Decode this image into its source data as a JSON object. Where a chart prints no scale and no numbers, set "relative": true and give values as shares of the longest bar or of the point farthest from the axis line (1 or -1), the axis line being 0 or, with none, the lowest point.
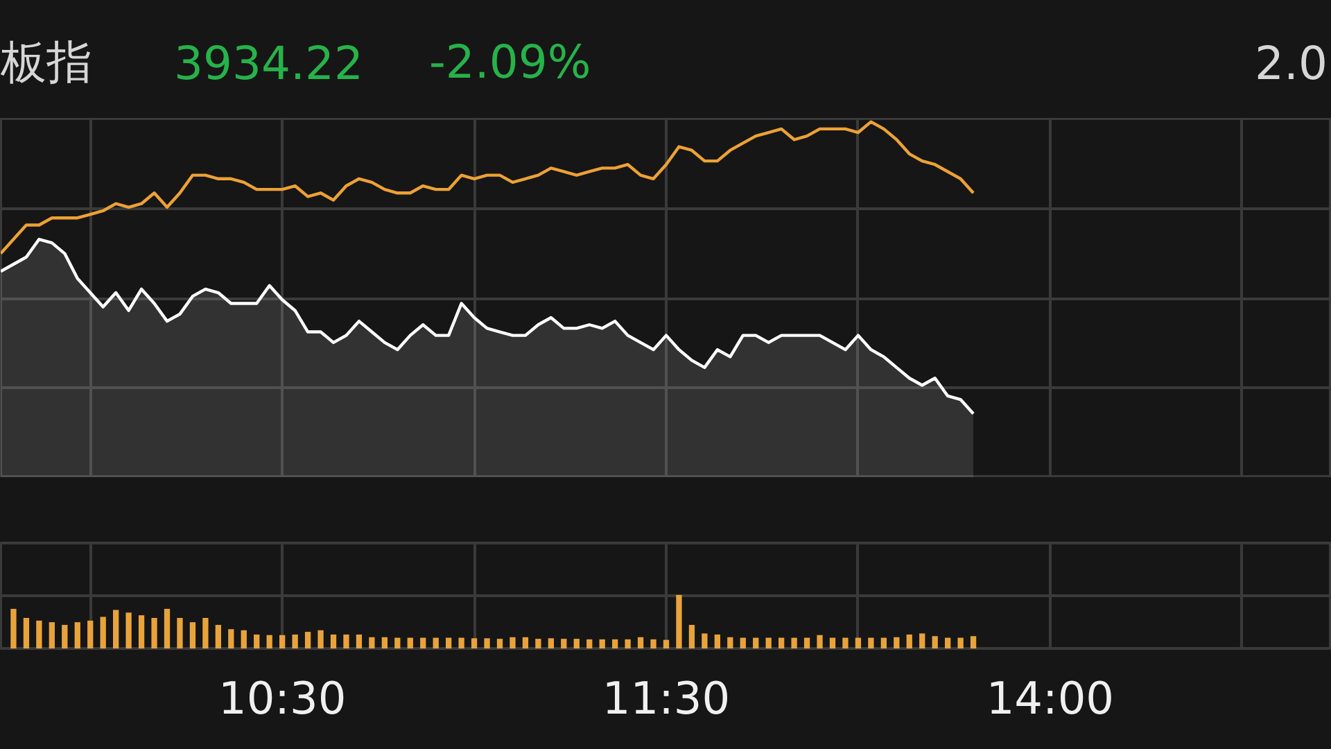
{
  "chart_data": [
    {
      "type": "line",
      "title": "板指",
      "annotations": [
        "3934.22",
        "-2.09%",
        "2.0"
      ],
      "relative": true,
      "grid": true,
      "tick_labels": false,
      "categories": [
        null,
        null,
        null,
        null,
        null,
        null,
        null,
        null,
        null,
        null,
        null,
        null,
        null,
        null,
        null,
        null,
        null,
        null,
        null,
        null,
        null,
        null,
        null,
        null,
        null,
        null,
        null,
        null,
        null,
        null,
        null,
        null,
        null,
        null,
        null,
        null,
        null,
        null,
        null,
        null,
        null,
        null,
        null,
        null,
        null,
        null,
        null,
        null,
        null,
        null,
        null,
        null,
        null,
        null,
        null,
        null,
        null,
        null,
        null,
        null,
        null,
        null,
        null,
        null,
        null,
        null,
        null,
        null,
        null,
        null,
        null,
        null,
        null,
        null,
        null,
        null,
        null,
        null,
        null,
        null,
        null,
        null,
        null,
        null,
        null,
        null,
        null,
        null,
        null,
        null,
        null,
        null,
        null,
        null,
        null,
        null,
        null,
        null,
        null,
        null,
        null,
        null,
        null,
        null,
        null
      ],
      "series": [
        {
          "type": "area",
          "color": "#ffffff",
          "values": [
            0.58,
            0.6,
            0.62,
            0.67,
            0.66,
            0.63,
            0.56,
            0.52,
            0.48,
            0.52,
            0.47,
            0.53,
            0.49,
            0.44,
            0.46,
            0.51,
            0.53,
            0.52,
            0.49,
            0.49,
            0.49,
            0.54,
            0.5,
            0.47,
            0.41,
            0.41,
            0.38,
            0.4,
            0.44,
            0.41,
            0.38,
            0.36,
            0.4,
            0.43,
            0.4,
            0.4,
            0.49,
            0.45,
            0.42,
            0.41,
            0.4,
            0.4,
            0.43,
            0.45,
            0.42,
            0.42,
            0.43,
            0.42,
            0.44,
            0.4,
            0.38,
            0.36,
            0.4,
            0.36,
            0.33,
            0.31,
            0.36,
            0.34,
            0.4,
            0.4,
            0.38,
            0.4,
            0.4,
            0.4,
            0.4,
            0.38,
            0.36,
            0.4,
            0.36,
            0.34,
            0.31,
            0.28,
            0.26,
            0.28,
            0.23,
            0.22,
            0.18,
            null,
            null,
            null,
            null,
            null,
            null,
            null,
            null,
            null,
            null,
            null,
            null,
            null,
            null,
            null,
            null,
            null,
            null,
            null,
            null,
            null,
            null,
            null,
            null,
            null,
            null,
            null,
            null
          ]
        },
        {
          "type": "line",
          "color": "#eda135",
          "values": [
            0.63,
            0.67,
            0.71,
            0.71,
            0.73,
            0.73,
            0.73,
            0.74,
            0.75,
            0.77,
            0.76,
            0.77,
            0.8,
            0.76,
            0.8,
            0.85,
            0.85,
            0.84,
            0.84,
            0.83,
            0.81,
            0.81,
            0.81,
            0.82,
            0.79,
            0.8,
            0.78,
            0.82,
            0.84,
            0.83,
            0.81,
            0.8,
            0.8,
            0.82,
            0.81,
            0.81,
            0.85,
            0.84,
            0.85,
            0.85,
            0.83,
            0.84,
            0.85,
            0.87,
            0.86,
            0.85,
            0.86,
            0.87,
            0.87,
            0.88,
            0.85,
            0.84,
            0.88,
            0.93,
            0.92,
            0.89,
            0.89,
            0.92,
            0.94,
            0.96,
            0.97,
            0.98,
            0.95,
            0.96,
            0.98,
            0.98,
            0.98,
            0.97,
            1,
            0.98,
            0.95,
            0.91,
            0.89,
            0.88,
            0.86,
            0.84,
            0.8,
            null,
            null,
            null,
            null,
            null,
            null,
            null,
            null,
            null,
            null,
            null,
            null,
            null,
            null,
            null,
            null,
            null,
            null,
            null,
            null,
            null,
            null,
            null,
            null,
            null,
            null,
            null,
            null
          ]
        }
      ]
    },
    {
      "type": "bar",
      "relative": true,
      "grid": true,
      "tick_labels": "x",
      "color": "#e9a33c",
      "categories": [
        null,
        null,
        null,
        null,
        null,
        null,
        null,
        null,
        null,
        null,
        null,
        null,
        null,
        null,
        null,
        null,
        null,
        null,
        null,
        null,
        null,
        null,
        "10:30",
        null,
        null,
        null,
        null,
        null,
        null,
        null,
        null,
        null,
        null,
        null,
        null,
        null,
        null,
        null,
        null,
        null,
        null,
        null,
        null,
        null,
        null,
        null,
        null,
        null,
        null,
        null,
        null,
        null,
        "11:30",
        null,
        null,
        null,
        null,
        null,
        null,
        null,
        null,
        null,
        null,
        null,
        null,
        null,
        null,
        null,
        null,
        null,
        null,
        null,
        null,
        null,
        null,
        null,
        null,
        null,
        null,
        null,
        null,
        null,
        "14:00",
        null,
        null,
        null,
        null,
        null,
        null,
        null,
        null,
        null,
        null,
        null,
        null,
        null,
        null,
        null,
        null,
        null,
        null,
        null,
        null,
        null,
        null
      ],
      "values": [
        null,
        0.74,
        0.57,
        0.52,
        0.49,
        0.44,
        0.49,
        0.52,
        0.59,
        0.72,
        0.67,
        0.62,
        0.57,
        0.74,
        0.57,
        0.49,
        0.57,
        0.44,
        0.36,
        0.34,
        0.26,
        0.25,
        0.25,
        0.26,
        0.31,
        0.34,
        0.26,
        0.26,
        0.26,
        0.21,
        0.21,
        0.2,
        0.2,
        0.2,
        0.2,
        0.2,
        0.2,
        0.19,
        0.19,
        0.18,
        0.21,
        0.21,
        0.18,
        0.19,
        0.18,
        0.18,
        0.17,
        0.17,
        0.17,
        0.17,
        0.21,
        0.17,
        0.16,
        1,
        0.44,
        0.28,
        0.26,
        0.21,
        0.2,
        0.2,
        0.2,
        0.2,
        0.2,
        0.2,
        0.25,
        0.2,
        0.2,
        0.2,
        0.2,
        0.2,
        0.21,
        0.26,
        0.28,
        0.23,
        0.2,
        0.2,
        0.23,
        null,
        null,
        null,
        null,
        null,
        null,
        null,
        null,
        null,
        null,
        null,
        null,
        null,
        null,
        null,
        null,
        null,
        null,
        null,
        null,
        null,
        null,
        null,
        null,
        null,
        null,
        null,
        null
      ]
    }
  ]
}
